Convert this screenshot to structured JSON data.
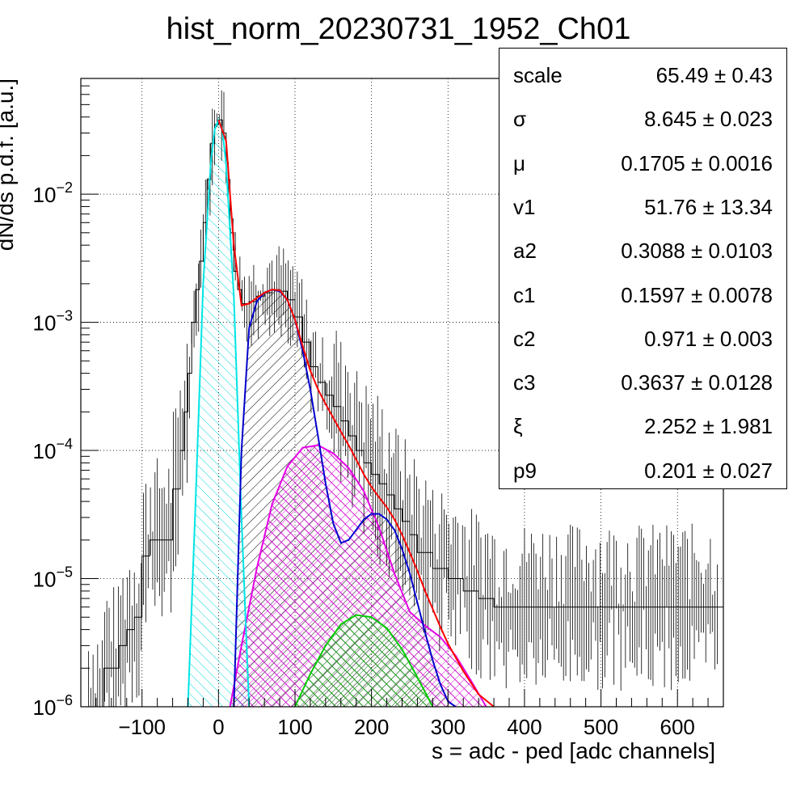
{
  "chart_data": {
    "type": "line",
    "title": "hist_norm_20230731_1952_Ch01",
    "xlabel": "s = adc - ped [adc channels]",
    "ylabel": "dN/ds p.d.f. [a.u.]",
    "xlim": [
      -180,
      660
    ],
    "ylim": [
      1e-06,
      0.08
    ],
    "yscale": "log",
    "grid": true,
    "x_ticks": [
      -100,
      0,
      100,
      200,
      300,
      400,
      500,
      600
    ],
    "y_tick_labels": [
      {
        "value": 1e-06,
        "base": "10",
        "exp": "−6"
      },
      {
        "value": 1e-05,
        "base": "10",
        "exp": "−5"
      },
      {
        "value": 0.0001,
        "base": "10",
        "exp": "−4"
      },
      {
        "value": 0.001,
        "base": "10",
        "exp": "−3"
      },
      {
        "value": 0.01,
        "base": "10",
        "exp": "−2"
      }
    ],
    "series": [
      {
        "color": "#000000",
        "style": "histogram",
        "x": [
          -170,
          -150,
          -130,
          -120,
          -110,
          -100,
          -90,
          -80,
          -70,
          -60,
          -50,
          -45,
          -40,
          -35,
          -30,
          -25,
          -20,
          -15,
          -10,
          -5,
          0,
          5,
          10,
          15,
          20,
          25,
          30,
          40,
          50,
          60,
          70,
          75,
          80,
          90,
          100,
          110,
          120,
          130,
          140,
          150,
          160,
          170,
          180,
          190,
          200,
          210,
          220,
          230,
          240,
          250,
          260,
          280,
          300,
          320,
          340,
          360,
          380,
          400,
          450,
          500,
          550,
          600,
          650
        ],
        "y": [
          1e-06,
          2e-06,
          3e-06,
          4e-06,
          5e-06,
          1.5e-05,
          2e-05,
          2e-05,
          2e-05,
          5e-05,
          0.0001,
          0.0002,
          0.0004,
          0.001,
          0.0018,
          0.003,
          0.006,
          0.013,
          0.025,
          0.035,
          0.038,
          0.03,
          0.013,
          0.005,
          0.0025,
          0.0018,
          0.0014,
          0.00145,
          0.0016,
          0.0017,
          0.0018,
          0.0018,
          0.00175,
          0.0015,
          0.0011,
          0.0007,
          0.00045,
          0.00034,
          0.00027,
          0.00022,
          0.00017,
          0.00013,
          0.0001,
          8e-05,
          6.5e-05,
          5.5e-05,
          4.5e-05,
          3.5e-05,
          2.8e-05,
          2.2e-05,
          1.6e-05,
          1.2e-05,
          1e-05,
          8e-06,
          7e-06,
          6e-06,
          6e-06,
          6e-06,
          6e-06,
          6e-06,
          6e-06,
          6e-06,
          6e-06
        ]
      },
      {
        "color": "#ff0000",
        "x": [
          0,
          10,
          20,
          30,
          40,
          50,
          60,
          70,
          80,
          90,
          100,
          110,
          120,
          130,
          140,
          150,
          160,
          170,
          180,
          190,
          200,
          210,
          220,
          230,
          240,
          250,
          260,
          270,
          280,
          290,
          300,
          320,
          340,
          360
        ],
        "y": [
          0.038,
          0.026,
          0.004,
          0.00135,
          0.0014,
          0.00155,
          0.0017,
          0.0018,
          0.00178,
          0.0015,
          0.00105,
          0.00065,
          0.00042,
          0.0003,
          0.00023,
          0.00018,
          0.00014,
          0.00011,
          8.5e-05,
          6.5e-05,
          5.2e-05,
          4.3e-05,
          3.6e-05,
          2.9e-05,
          2.2e-05,
          1.6e-05,
          1.15e-05,
          8e-06,
          5.8e-06,
          4.2e-06,
          3.1e-06,
          1.9e-06,
          1.25e-06,
          1e-06
        ]
      },
      {
        "color": "#0000cc",
        "x": [
          20,
          30,
          40,
          50,
          60,
          70,
          80,
          90,
          100,
          110,
          120,
          130,
          140,
          150,
          160,
          170,
          180,
          190,
          200,
          210,
          220,
          230,
          240,
          250,
          260,
          270,
          280,
          290,
          300,
          310
        ],
        "y": [
          1e-06,
          0.0001,
          0.0009,
          0.00145,
          0.0017,
          0.0018,
          0.00175,
          0.0015,
          0.00105,
          0.0006,
          0.0003,
          0.00013,
          5.5e-05,
          2.7e-05,
          1.9e-05,
          2e-05,
          2.4e-05,
          2.9e-05,
          3.2e-05,
          3.2e-05,
          2.9e-05,
          2.4e-05,
          1.7e-05,
          1.1e-05,
          6.5e-06,
          3.8e-06,
          2.3e-06,
          1.5e-06,
          1.1e-06,
          1e-06
        ]
      },
      {
        "color": "#00e5e5",
        "x": [
          -40,
          -30,
          -20,
          -10,
          -5,
          0,
          5,
          10,
          20,
          30,
          40
        ],
        "y": [
          1e-06,
          4e-05,
          0.002,
          0.018,
          0.032,
          0.038,
          0.032,
          0.017,
          0.0016,
          3e-05,
          1e-06
        ]
      },
      {
        "color": "#e600e6",
        "x": [
          15,
          30,
          50,
          70,
          90,
          110,
          130,
          150,
          170,
          190,
          210,
          230,
          250,
          270,
          290,
          310,
          330,
          350
        ],
        "y": [
          1e-06,
          3e-06,
          1.2e-05,
          3.8e-05,
          7.5e-05,
          0.000105,
          0.00011,
          9.5e-05,
          7.3e-05,
          4.8e-05,
          2.5e-05,
          1.1e-05,
          5.5e-06,
          4.3e-06,
          3.5e-06,
          2.5e-06,
          1.6e-06,
          1e-06
        ]
      },
      {
        "color": "#00cc00",
        "x": [
          100,
          120,
          140,
          160,
          180,
          200,
          220,
          240,
          260,
          280
        ],
        "y": [
          1e-06,
          1.8e-06,
          3e-06,
          4.4e-06,
          5.2e-06,
          5e-06,
          4.1e-06,
          2.8e-06,
          1.7e-06,
          1e-06
        ]
      }
    ]
  },
  "stats": [
    {
      "name": "scale",
      "value": "65.49 ± 0.43"
    },
    {
      "name": "σ",
      "value": "8.645 ± 0.023"
    },
    {
      "name": "μ",
      "value": "0.1705 ± 0.0016"
    },
    {
      "name": "v1",
      "value": "51.76 ± 13.34"
    },
    {
      "name": "a2",
      "value": "0.3088 ± 0.0103"
    },
    {
      "name": "c1",
      "value": "0.1597 ± 0.0078"
    },
    {
      "name": "c2",
      "value": "0.971 ± 0.003"
    },
    {
      "name": "c3",
      "value": "0.3637 ± 0.0128"
    },
    {
      "name": "ξ",
      "value": "2.252 ± 1.981"
    },
    {
      "name": "p9",
      "value": "0.201 ± 0.027"
    }
  ]
}
